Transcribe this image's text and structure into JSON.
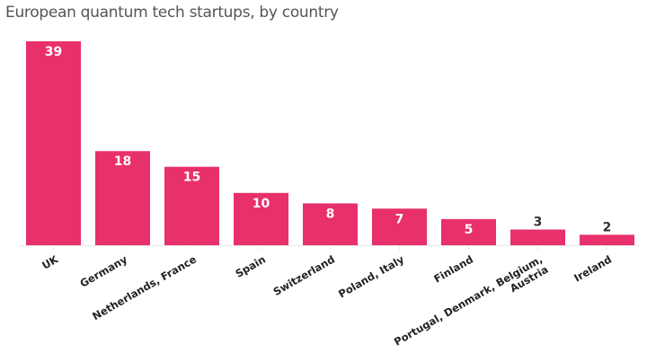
{
  "chart_data": {
    "type": "bar",
    "title": "European quantum tech startups, by country",
    "xlabel": "",
    "ylabel": "",
    "categories": [
      "UK",
      "Germany",
      "Netherlands, France",
      "Spain",
      "Switzerland",
      "Poland, Italy",
      "Finland",
      "Portugal, Denmark, Belgium, Austria",
      "Ireland"
    ],
    "category_lines": [
      [
        "UK"
      ],
      [
        "Germany"
      ],
      [
        "Netherlands, France"
      ],
      [
        "Spain"
      ],
      [
        "Switzerland"
      ],
      [
        "Poland, Italy"
      ],
      [
        "Finland"
      ],
      [
        "Portugal, Denmark, Belgium,",
        "Austria"
      ],
      [
        "Ireland"
      ]
    ],
    "values": [
      39,
      18,
      15,
      10,
      8,
      7,
      5,
      3,
      2
    ],
    "ylim": [
      0,
      39
    ],
    "grid": false,
    "legend": "none",
    "bar_color": "#e8306b",
    "data_labels": true
  }
}
